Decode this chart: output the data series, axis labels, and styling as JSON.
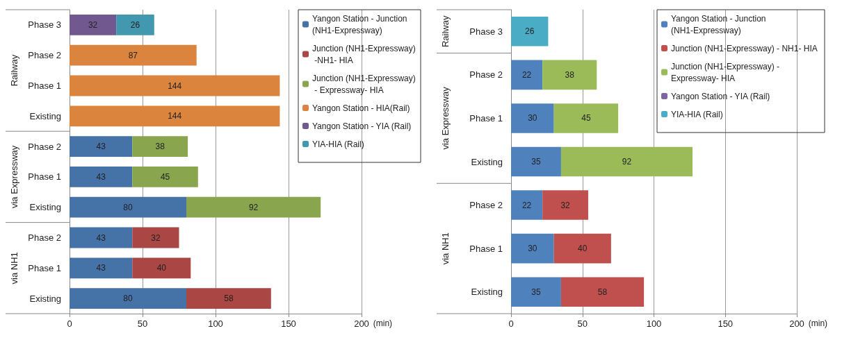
{
  "chart_data": [
    {
      "type": "bar",
      "orientation": "horizontal",
      "stacked": true,
      "data_labels": true,
      "grid": "x",
      "legend": "top right",
      "xlabel": "(min)",
      "xlim": [
        0,
        200
      ],
      "xticks": [
        0,
        50,
        100,
        150,
        200
      ],
      "categories": [
        "Phase 3",
        "Phase 2",
        "Phase 1",
        "Existing",
        "Phase 2",
        "Phase 1",
        "Existing",
        "Phase 2",
        "Phase 1",
        "Existing"
      ],
      "annotations": [
        "Railway",
        "via Expressway",
        "via NH1"
      ],
      "series": [
        {
          "name": "Yangon Station - Junction (NH1-Expressway)",
          "color": "#4572a7",
          "values": [
            null,
            null,
            null,
            null,
            43,
            43,
            80,
            43,
            43,
            80
          ]
        },
        {
          "name": "Junction (NH1-Expressway) -NH1- HIA",
          "color": "#aa4643",
          "values": [
            null,
            null,
            null,
            null,
            null,
            null,
            null,
            32,
            40,
            58
          ]
        },
        {
          "name": "Junction (NH1-Expressway) - Expressway- HIA",
          "color": "#89a54e",
          "values": [
            null,
            null,
            null,
            null,
            38,
            45,
            92,
            null,
            null,
            null
          ]
        },
        {
          "name": "Yangon Station - HIA(Rail)",
          "color": "#db843d",
          "values": [
            null,
            87,
            144,
            144,
            null,
            null,
            null,
            null,
            null,
            null
          ]
        },
        {
          "name": "Yangon Station - YIA (Rail)",
          "color": "#71588f",
          "values": [
            32,
            null,
            null,
            null,
            null,
            null,
            null,
            null,
            null,
            null
          ]
        },
        {
          "name": "YIA-HIA (Rail)",
          "color": "#4198af",
          "values": [
            26,
            null,
            null,
            null,
            null,
            null,
            null,
            null,
            null,
            null
          ]
        }
      ]
    },
    {
      "type": "bar",
      "orientation": "horizontal",
      "stacked": true,
      "data_labels": true,
      "grid": "x",
      "legend": "top right",
      "xlabel": "(min)",
      "xlim": [
        0,
        200
      ],
      "xticks": [
        0,
        50,
        100,
        150,
        200
      ],
      "categories": [
        "Phase 3",
        "Phase 2",
        "Phase 1",
        "Existing",
        "Phase 2",
        "Phase 1",
        "Existing"
      ],
      "annotations": [
        "Railway",
        "via Expressway",
        "via NH1"
      ],
      "series": [
        {
          "name": "Yangon Station - Junction (NH1-Expressway)",
          "color": "#4f81bd",
          "values": [
            null,
            22,
            30,
            35,
            22,
            30,
            35
          ]
        },
        {
          "name": "Junction (NH1-Expressway) - NH1- HIA",
          "color": "#c0504d",
          "values": [
            null,
            null,
            null,
            null,
            32,
            40,
            58
          ]
        },
        {
          "name": "Junction (NH1-Expressway) - Expressway- HIA",
          "color": "#9bbb59",
          "values": [
            null,
            38,
            45,
            92,
            null,
            null,
            null
          ]
        },
        {
          "name": "Yangon Station - YIA (Rail)",
          "color": "#8064a2",
          "values": [
            null,
            null,
            null,
            null,
            null,
            null,
            null
          ]
        },
        {
          "name": "YIA-HIA (Rail)",
          "color": "#4bacc6",
          "values": [
            26,
            null,
            null,
            null,
            null,
            null,
            null
          ]
        }
      ]
    }
  ]
}
